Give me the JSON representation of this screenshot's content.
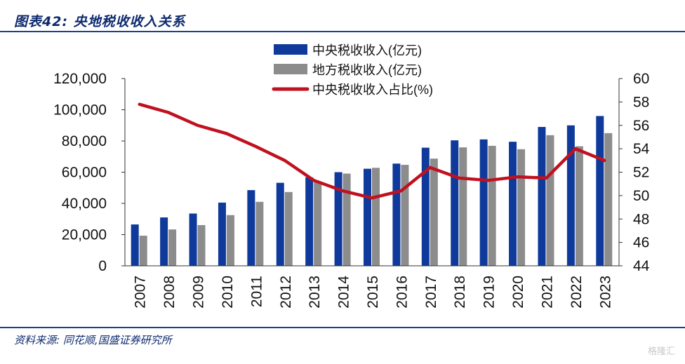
{
  "header": {
    "title": "图表42:  央地税收收入关系"
  },
  "footer": {
    "source": "资料来源:  同花顺,国盛证券研究所",
    "watermark": "格隆汇"
  },
  "colors": {
    "central": "#0f3a9b",
    "local": "#8c8c8c",
    "ratio": "#c0111f",
    "accent_rule": "#1b3f8f"
  },
  "chart_data": {
    "type": "bar",
    "categories": [
      "2007",
      "2008",
      "2009",
      "2010",
      "2011",
      "2012",
      "2013",
      "2014",
      "2015",
      "2016",
      "2017",
      "2018",
      "2019",
      "2020",
      "2021",
      "2022",
      "2023"
    ],
    "series": [
      {
        "name": "中央税收收入(亿元)",
        "kind": "bar",
        "axis": "left",
        "values": [
          26500,
          31000,
          33500,
          40500,
          48500,
          53200,
          56700,
          60000,
          62200,
          65500,
          75700,
          80400,
          81000,
          79500,
          89000,
          90000,
          96000
        ]
      },
      {
        "name": "地方税收收入(亿元)",
        "kind": "bar",
        "axis": "left",
        "values": [
          19300,
          23300,
          26100,
          32500,
          41000,
          47300,
          53900,
          59100,
          62800,
          64700,
          68700,
          75900,
          76900,
          74700,
          83700,
          76600,
          85000
        ]
      },
      {
        "name": "中央税收收入占比(%)",
        "kind": "line",
        "axis": "right",
        "values": [
          57.8,
          57.1,
          56.0,
          55.3,
          54.2,
          53.0,
          51.3,
          50.4,
          49.8,
          50.4,
          52.4,
          51.5,
          51.3,
          51.6,
          51.5,
          54.0,
          53.0
        ]
      }
    ],
    "left_axis": {
      "ylim": [
        0,
        120000
      ],
      "ticks": [
        "0",
        "20,000",
        "40,000",
        "60,000",
        "80,000",
        "100,000",
        "120,000"
      ]
    },
    "right_axis": {
      "ylim": [
        44,
        60
      ],
      "ticks": [
        "44",
        "46",
        "48",
        "50",
        "52",
        "54",
        "56",
        "58",
        "60"
      ]
    },
    "legend_position": "top-center",
    "grid": false
  }
}
